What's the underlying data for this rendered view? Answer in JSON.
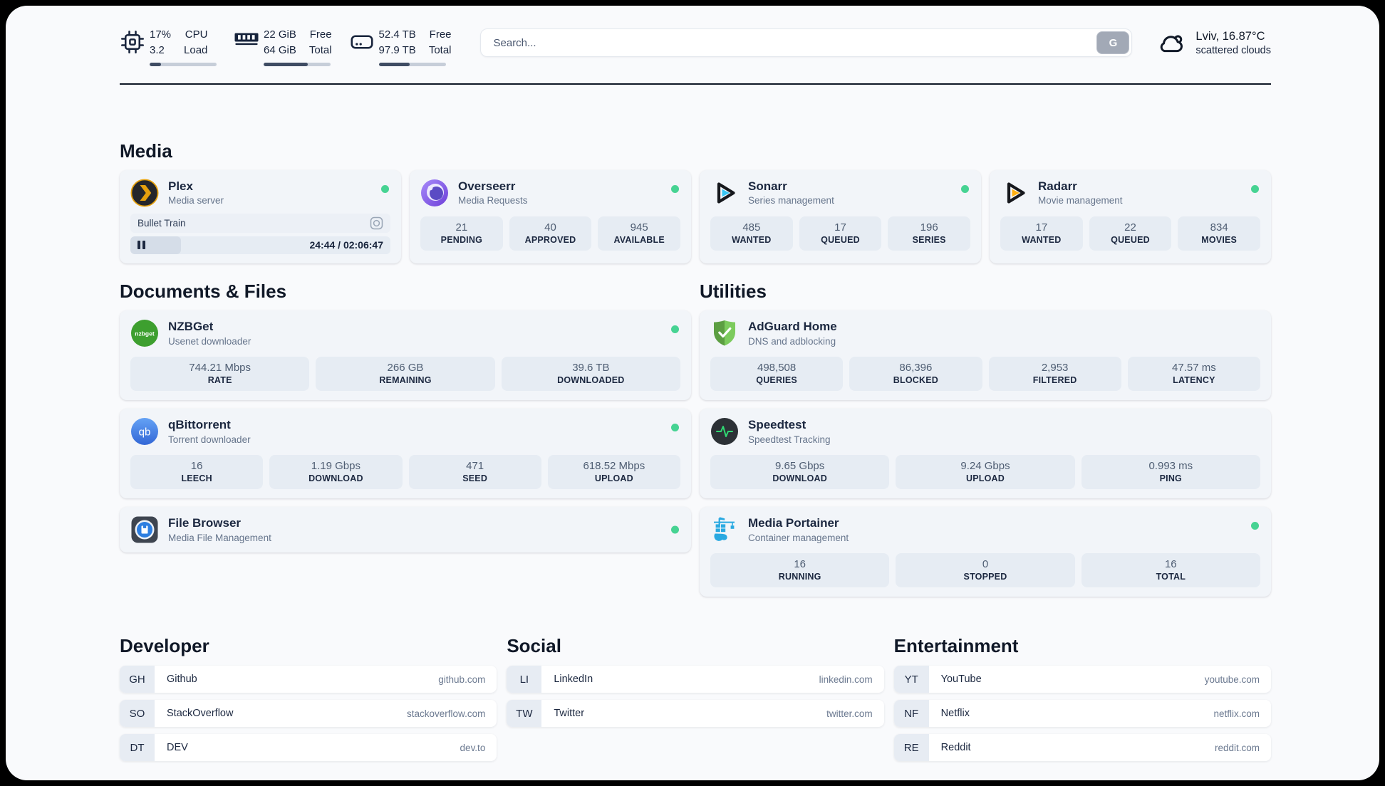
{
  "topbar": {
    "cpu": {
      "value_top": "17%",
      "value_bottom": "3.2",
      "label_top": "CPU",
      "label_bottom": "Load",
      "progress": 17
    },
    "ram": {
      "value_top": "22 GiB",
      "value_bottom": "64 GiB",
      "label_top": "Free",
      "label_bottom": "Total",
      "progress": 66
    },
    "disk": {
      "value_top": "52.4 TB",
      "value_bottom": "97.9 TB",
      "label_top": "Free",
      "label_bottom": "Total",
      "progress": 46
    },
    "search": {
      "placeholder": "Search...",
      "button_label": "G"
    },
    "weather": {
      "location_temp": "Lviv, 16.87°C",
      "condition": "scattered clouds"
    }
  },
  "section_titles": {
    "media": "Media",
    "documents": "Documents & Files",
    "utilities": "Utilities"
  },
  "apps": {
    "plex": {
      "title": "Plex",
      "subtitle": "Media server",
      "now_playing_title": "Bullet Train",
      "time": "24:44 / 02:06:47",
      "progress_percent": 19.5
    },
    "overseerr": {
      "title": "Overseerr",
      "subtitle": "Media Requests",
      "stats": [
        {
          "value": "21",
          "label": "PENDING"
        },
        {
          "value": "40",
          "label": "APPROVED"
        },
        {
          "value": "945",
          "label": "AVAILABLE"
        }
      ]
    },
    "sonarr": {
      "title": "Sonarr",
      "subtitle": "Series management",
      "stats": [
        {
          "value": "485",
          "label": "WANTED"
        },
        {
          "value": "17",
          "label": "QUEUED"
        },
        {
          "value": "196",
          "label": "SERIES"
        }
      ]
    },
    "radarr": {
      "title": "Radarr",
      "subtitle": "Movie management",
      "stats": [
        {
          "value": "17",
          "label": "WANTED"
        },
        {
          "value": "22",
          "label": "QUEUED"
        },
        {
          "value": "834",
          "label": "MOVIES"
        }
      ]
    },
    "nzbget": {
      "title": "NZBGet",
      "subtitle": "Usenet downloader",
      "stats": [
        {
          "value": "744.21 Mbps",
          "label": "RATE"
        },
        {
          "value": "266 GB",
          "label": "REMAINING"
        },
        {
          "value": "39.6 TB",
          "label": "DOWNLOADED"
        }
      ]
    },
    "qbittorrent": {
      "title": "qBittorrent",
      "subtitle": "Torrent downloader",
      "stats": [
        {
          "value": "16",
          "label": "LEECH"
        },
        {
          "value": "1.19 Gbps",
          "label": "DOWNLOAD"
        },
        {
          "value": "471",
          "label": "SEED"
        },
        {
          "value": "618.52 Mbps",
          "label": "UPLOAD"
        }
      ]
    },
    "filebrowser": {
      "title": "File Browser",
      "subtitle": "Media File Management"
    },
    "adguard": {
      "title": "AdGuard Home",
      "subtitle": "DNS and adblocking",
      "stats": [
        {
          "value": "498,508",
          "label": "QUERIES"
        },
        {
          "value": "86,396",
          "label": "BLOCKED"
        },
        {
          "value": "2,953",
          "label": "FILTERED"
        },
        {
          "value": "47.57 ms",
          "label": "LATENCY"
        }
      ]
    },
    "speedtest": {
      "title": "Speedtest",
      "subtitle": "Speedtest Tracking",
      "stats": [
        {
          "value": "9.65 Gbps",
          "label": "DOWNLOAD"
        },
        {
          "value": "9.24 Gbps",
          "label": "UPLOAD"
        },
        {
          "value": "0.993 ms",
          "label": "PING"
        }
      ]
    },
    "portainer": {
      "title": "Media Portainer",
      "subtitle": "Container management",
      "stats": [
        {
          "value": "16",
          "label": "RUNNING"
        },
        {
          "value": "0",
          "label": "STOPPED"
        },
        {
          "value": "16",
          "label": "TOTAL"
        }
      ]
    }
  },
  "bookmarks": [
    {
      "title": "Developer",
      "items": [
        {
          "abbr": "GH",
          "name": "Github",
          "url": "github.com"
        },
        {
          "abbr": "SO",
          "name": "StackOverflow",
          "url": "stackoverflow.com"
        },
        {
          "abbr": "DT",
          "name": "DEV",
          "url": "dev.to"
        }
      ]
    },
    {
      "title": "Social",
      "items": [
        {
          "abbr": "LI",
          "name": "LinkedIn",
          "url": "linkedin.com"
        },
        {
          "abbr": "TW",
          "name": "Twitter",
          "url": "twitter.com"
        }
      ]
    },
    {
      "title": "Entertainment",
      "items": [
        {
          "abbr": "YT",
          "name": "YouTube",
          "url": "youtube.com"
        },
        {
          "abbr": "NF",
          "name": "Netflix",
          "url": "netflix.com"
        },
        {
          "abbr": "RE",
          "name": "Reddit",
          "url": "reddit.com"
        }
      ]
    }
  ],
  "colors": {
    "online_dot": "#46d393",
    "plex_accent": "#e5a00d"
  }
}
